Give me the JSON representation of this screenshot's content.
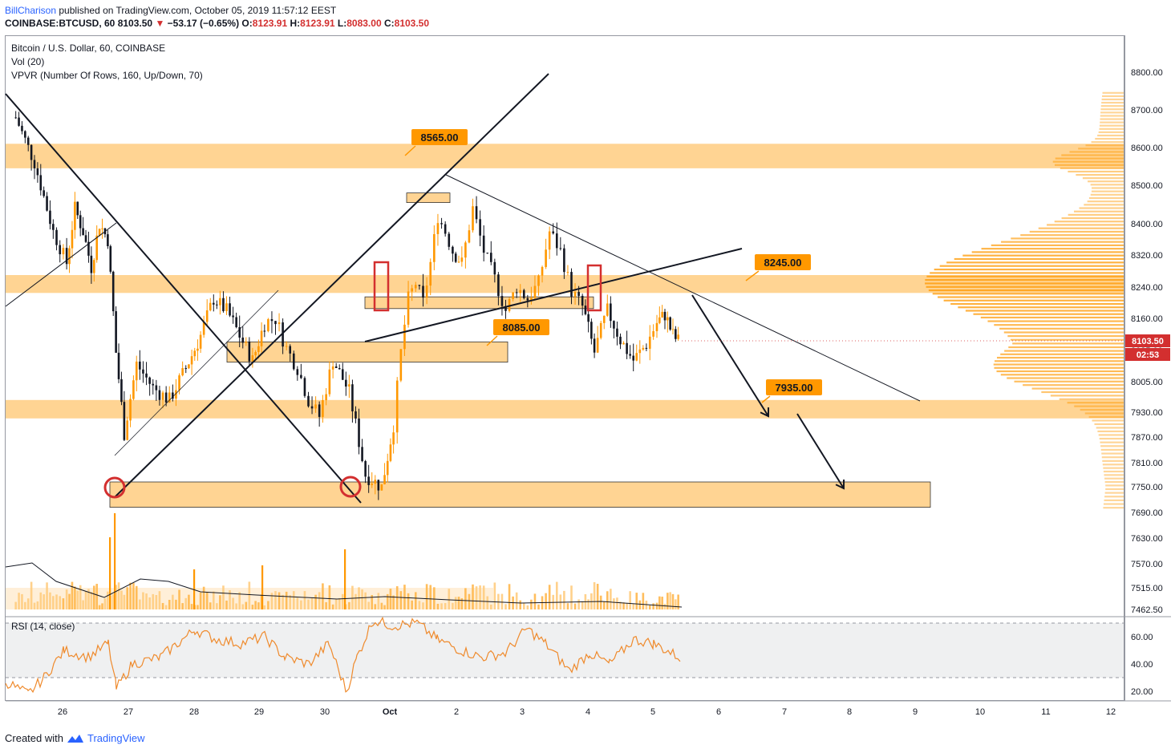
{
  "header": {
    "author": "BillCharison",
    "published": "published on TradingView.com, October 05, 2019 11:57:12 EEST",
    "symbol": "COINBASE:BTCUSD, 60",
    "last": "8103.50",
    "change": "−53.17 (−0.65%)",
    "o_label": "O:",
    "o": "8123.91",
    "h_label": "H:",
    "h": "8123.91",
    "l_label": "L:",
    "l": "8083.00",
    "c_label": "C:",
    "c": "8103.50"
  },
  "legends": {
    "main": "Bitcoin / U.S. Dollar, 60, COINBASE",
    "vol": "Vol (20)",
    "vpvr": "VPVR (Number Of Rows, 160, Up/Down, 70)",
    "rsi": "RSI (14, close)"
  },
  "price_axis": {
    "ticks": [
      "8800.00",
      "8700.00",
      "8600.00",
      "8500.00",
      "8400.00",
      "8320.00",
      "8240.00",
      "8160.00",
      "8085.00",
      "8005.00",
      "7930.00",
      "7870.00",
      "7810.00",
      "7750.00",
      "7690.00",
      "7630.00",
      "7570.00",
      "7515.00",
      "7462.50"
    ],
    "current_price": "8103.50",
    "countdown": "02:53"
  },
  "rsi_axis": {
    "ticks": [
      "60.00",
      "40.00",
      "20.00"
    ]
  },
  "time_axis": {
    "ticks": [
      "26",
      "27",
      "28",
      "29",
      "30",
      "Oct",
      "2",
      "3",
      "4",
      "5",
      "6",
      "7",
      "8",
      "9",
      "10",
      "11",
      "12"
    ]
  },
  "level_labels": [
    "8565.00",
    "8245.00",
    "8085.00",
    "7935.00"
  ],
  "colors": {
    "zone": "#ffcc80",
    "label_bg": "#ff9800",
    "up_candle": "#ff9800",
    "down_candle": "#131722",
    "marker": "#d32f2f",
    "rsi_line": "#ef8a2c",
    "price_tag": "#d32f2f"
  },
  "footer": {
    "created_with": "Created with",
    "brand": "TradingView",
    "logo_icon": "tradingview-logo-icon"
  },
  "chart_data": {
    "type": "candlestick",
    "title": "Bitcoin / U.S. Dollar, 60, COINBASE",
    "y_range": [
      7462.5,
      8850
    ],
    "x_range": [
      "Sep 25",
      "Oct 12"
    ],
    "horizontal_levels": [
      8565,
      8245,
      8085,
      7935
    ],
    "support_zone": [
      7700,
      7760
    ],
    "trend_path": [
      {
        "date": "Sep 25",
        "price": 8680
      },
      {
        "date": "Sep 25",
        "price": 8560
      },
      {
        "date": "Sep 25",
        "price": 8380
      },
      {
        "date": "Sep 26",
        "price": 8300
      },
      {
        "date": "Sep 26",
        "price": 8440
      },
      {
        "date": "Sep 26",
        "price": 8380
      },
      {
        "date": "Sep 26",
        "price": 8290
      },
      {
        "date": "Sep 26",
        "price": 8400
      },
      {
        "date": "Sep 26",
        "price": 8360
      },
      {
        "date": "Sep 26",
        "price": 8080
      },
      {
        "date": "Sep 26",
        "price": 7880
      },
      {
        "date": "Sep 27",
        "price": 8050
      },
      {
        "date": "Sep 27",
        "price": 7990
      },
      {
        "date": "Sep 27",
        "price": 7960
      },
      {
        "date": "Sep 27",
        "price": 8040
      },
      {
        "date": "Sep 28",
        "price": 8120
      },
      {
        "date": "Sep 28",
        "price": 8210
      },
      {
        "date": "Sep 28",
        "price": 8180
      },
      {
        "date": "Sep 28",
        "price": 8120
      },
      {
        "date": "Sep 28",
        "price": 8060
      },
      {
        "date": "Sep 29",
        "price": 8150
      },
      {
        "date": "Sep 29",
        "price": 8160
      },
      {
        "date": "Sep 29",
        "price": 8090
      },
      {
        "date": "Sep 29",
        "price": 8040
      },
      {
        "date": "Sep 29",
        "price": 7960
      },
      {
        "date": "Sep 29",
        "price": 7920
      },
      {
        "date": "Sep 30",
        "price": 8060
      },
      {
        "date": "Sep 30",
        "price": 7980
      },
      {
        "date": "Sep 30",
        "price": 7780
      },
      {
        "date": "Sep 30",
        "price": 7750
      },
      {
        "date": "Oct 1",
        "price": 7900
      },
      {
        "date": "Oct 1",
        "price": 8080
      },
      {
        "date": "Oct 1",
        "price": 8210
      },
      {
        "date": "Oct 1",
        "price": 8250
      },
      {
        "date": "Oct 1",
        "price": 8200
      },
      {
        "date": "Oct 1",
        "price": 8300
      },
      {
        "date": "Oct 1",
        "price": 8420
      },
      {
        "date": "Oct 1",
        "price": 8380
      },
      {
        "date": "Oct 1",
        "price": 8330
      },
      {
        "date": "Oct 2",
        "price": 8300
      },
      {
        "date": "Oct 2",
        "price": 8440
      },
      {
        "date": "Oct 2",
        "price": 8330
      },
      {
        "date": "Oct 2",
        "price": 8260
      },
      {
        "date": "Oct 2",
        "price": 8180
      },
      {
        "date": "Oct 2",
        "price": 8240
      },
      {
        "date": "Oct 3",
        "price": 8210
      },
      {
        "date": "Oct 3",
        "price": 8250
      },
      {
        "date": "Oct 3",
        "price": 8380
      },
      {
        "date": "Oct 3",
        "price": 8330
      },
      {
        "date": "Oct 3",
        "price": 8230
      },
      {
        "date": "Oct 3",
        "price": 8190
      },
      {
        "date": "Oct 4",
        "price": 8080
      },
      {
        "date": "Oct 4",
        "price": 8180
      },
      {
        "date": "Oct 4",
        "price": 8110
      },
      {
        "date": "Oct 4",
        "price": 8060
      },
      {
        "date": "Oct 4",
        "price": 8100
      },
      {
        "date": "Oct 5",
        "price": 8150
      },
      {
        "date": "Oct 5",
        "price": 8170
      },
      {
        "date": "Oct 5",
        "price": 8120
      },
      {
        "date": "Oct 5",
        "price": 8100
      }
    ],
    "projected_targets": [
      7935,
      7750
    ]
  }
}
